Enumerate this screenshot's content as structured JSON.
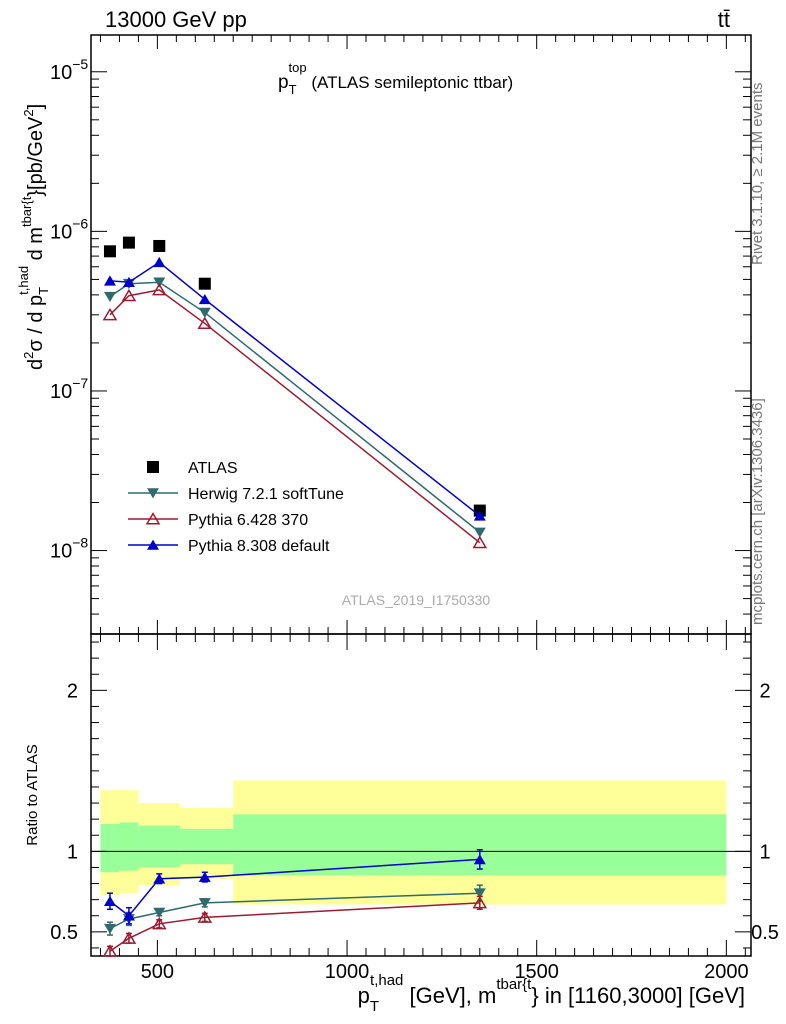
{
  "header": {
    "energy_label": "13000 GeV pp",
    "process_label": "tt̄",
    "rivet_label": "Rivet 3.1.10, ≥ 2.1M events",
    "mcplots_label": "mcplots.cern.ch [arXiv:1306.3436]",
    "analysis_id": "ATLAS_2019_I1750330"
  },
  "chart_data": [
    {
      "type": "scatter",
      "panel": "main",
      "title": {
        "base": "p",
        "sub": "T",
        "sup": "top",
        "rest": " (ATLAS semileptonic ttbar)"
      },
      "ylabel": {
        "p1": "d",
        "p1sup": "2",
        "p2": "σ / d p",
        "p2sub": "T",
        "p2sup": "t,had",
        "p3": " d m",
        "p3sup": "tbar{t",
        "p4": "}[pb/GeV",
        "p4sup": "2",
        "p5": "]"
      },
      "yscale": "log",
      "ylim": [
        3e-09,
        1.7e-05
      ],
      "yticks": [
        {
          "value": 1e-08,
          "base": "10",
          "exp": "−8"
        },
        {
          "value": 1e-07,
          "base": "10",
          "exp": "−7"
        },
        {
          "value": 1e-06,
          "base": "10",
          "exp": "−6"
        },
        {
          "value": 1e-05,
          "base": "10",
          "exp": "−5"
        }
      ],
      "legend_position": "middle-left",
      "legend": [
        {
          "label": "ATLAS",
          "marker": "square",
          "color": "#000000"
        },
        {
          "label": "Herwig 7.2.1 softTune",
          "marker": "triangle-down",
          "color": "#2e6a6e"
        },
        {
          "label": "Pythia 6.428 370",
          "marker": "triangle-up-open",
          "color": "#9b1b30"
        },
        {
          "label": "Pythia 8.308 default",
          "marker": "triangle-up",
          "color": "#0000cc"
        }
      ],
      "series": [
        {
          "name": "ATLAS",
          "x": [
            375,
            425,
            505,
            625,
            1350
          ],
          "y": [
            7.5e-07,
            8.5e-07,
            8.1e-07,
            4.7e-07,
            1.78e-08
          ]
        },
        {
          "name": "Herwig 7.2.1 softTune",
          "x": [
            375,
            425,
            505,
            625,
            1350
          ],
          "y": [
            3.9e-07,
            4.7e-07,
            4.8e-07,
            3.1e-07,
            1.3e-08
          ]
        },
        {
          "name": "Pythia 6.428 370",
          "x": [
            375,
            425,
            505,
            625,
            1350
          ],
          "y": [
            3e-07,
            3.95e-07,
            4.3e-07,
            2.65e-07,
            1.12e-08
          ]
        },
        {
          "name": "Pythia 8.308 default",
          "x": [
            375,
            425,
            505,
            625,
            1350
          ],
          "y": [
            4.9e-07,
            4.8e-07,
            6.4e-07,
            3.75e-07,
            1.65e-08
          ]
        }
      ]
    },
    {
      "type": "scatter",
      "panel": "ratio",
      "ylabel": "Ratio to ATLAS",
      "xlabel": {
        "a": "p",
        "asub": "T",
        "asup": "t,had",
        "b": " [GeV], m",
        "bsup": "tbar{t",
        "c": "} in [1160,3000] [GeV]"
      },
      "xlim": [
        325,
        2065
      ],
      "ylim": [
        0.35,
        2.35
      ],
      "xticks": [
        500,
        1000,
        1500,
        2000
      ],
      "yticks": [
        0.5,
        1,
        2
      ],
      "bands": [
        {
          "x": [
            350,
            400
          ],
          "inner": [
            0.87,
            1.17
          ],
          "outer": [
            0.73,
            1.38
          ]
        },
        {
          "x": [
            400,
            450
          ],
          "inner": [
            0.88,
            1.18
          ],
          "outer": [
            0.74,
            1.38
          ]
        },
        {
          "x": [
            450,
            560
          ],
          "inner": [
            0.9,
            1.16
          ],
          "outer": [
            0.79,
            1.3
          ]
        },
        {
          "x": [
            560,
            700
          ],
          "inner": [
            0.92,
            1.14
          ],
          "outer": [
            0.83,
            1.27
          ]
        },
        {
          "x": [
            700,
            2000
          ],
          "inner": [
            0.85,
            1.23
          ],
          "outer": [
            0.67,
            1.44
          ]
        }
      ],
      "series": [
        {
          "name": "Herwig 7.2.1 softTune",
          "x": [
            375,
            425,
            505,
            625,
            1350
          ],
          "y": [
            0.52,
            0.58,
            0.62,
            0.68,
            0.74
          ],
          "err": [
            0.04,
            0.04,
            0.02,
            0.025,
            0.05
          ]
        },
        {
          "name": "Pythia 6.428 370",
          "x": [
            375,
            425,
            505,
            625,
            1350
          ],
          "y": [
            0.38,
            0.46,
            0.55,
            0.59,
            0.68
          ],
          "err": [
            0.03,
            0.03,
            0.025,
            0.025,
            0.04
          ]
        },
        {
          "name": "Pythia 8.308 default",
          "x": [
            375,
            425,
            505,
            625,
            1350
          ],
          "y": [
            0.69,
            0.6,
            0.83,
            0.84,
            0.95
          ],
          "err": [
            0.05,
            0.05,
            0.03,
            0.03,
            0.06
          ]
        }
      ]
    }
  ]
}
